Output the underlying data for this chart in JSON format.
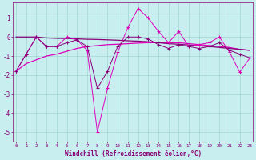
{
  "xlabel": "Windchill (Refroidissement éolien,°C)",
  "background_color": "#c8eef0",
  "grid_color": "#a0d8d0",
  "line_color_bright": "#dd00bb",
  "line_color_dark": "#880077",
  "x": [
    0,
    1,
    2,
    3,
    4,
    5,
    6,
    7,
    8,
    9,
    10,
    11,
    12,
    13,
    14,
    15,
    16,
    17,
    18,
    19,
    20,
    21,
    22,
    23
  ],
  "y_jagged1": [
    -1.8,
    -0.9,
    0.0,
    -0.5,
    -0.5,
    0.0,
    -0.15,
    -0.7,
    -5.0,
    -2.7,
    -0.8,
    0.5,
    1.5,
    1.0,
    0.3,
    -0.3,
    0.3,
    -0.5,
    -0.4,
    -0.3,
    0.0,
    -0.8,
    -1.85,
    -1.1
  ],
  "y_jagged2": [
    -1.8,
    -0.9,
    0.0,
    -0.5,
    -0.5,
    -0.3,
    -0.15,
    -0.5,
    -2.7,
    -1.8,
    -0.5,
    0.0,
    0.0,
    -0.1,
    -0.4,
    -0.6,
    -0.4,
    -0.5,
    -0.6,
    -0.5,
    -0.3,
    -0.7,
    -0.9,
    -1.1
  ],
  "y_trend1": [
    -1.8,
    -1.4,
    -1.2,
    -1.0,
    -0.9,
    -0.75,
    -0.6,
    -0.5,
    -0.45,
    -0.4,
    -0.38,
    -0.35,
    -0.32,
    -0.3,
    -0.3,
    -0.3,
    -0.3,
    -0.35,
    -0.4,
    -0.45,
    -0.5,
    -0.55,
    -0.65,
    -0.7
  ],
  "y_trend2": [
    0.0,
    -0.0,
    -0.0,
    -0.05,
    -0.07,
    -0.08,
    -0.1,
    -0.12,
    -0.13,
    -0.15,
    -0.17,
    -0.2,
    -0.22,
    -0.25,
    -0.3,
    -0.35,
    -0.38,
    -0.42,
    -0.46,
    -0.5,
    -0.55,
    -0.6,
    -0.65,
    -0.7
  ],
  "ylim": [
    -5.5,
    1.8
  ],
  "yticks": [
    -5,
    -4,
    -3,
    -2,
    -1,
    0,
    1
  ],
  "xlim": [
    -0.3,
    23.3
  ]
}
